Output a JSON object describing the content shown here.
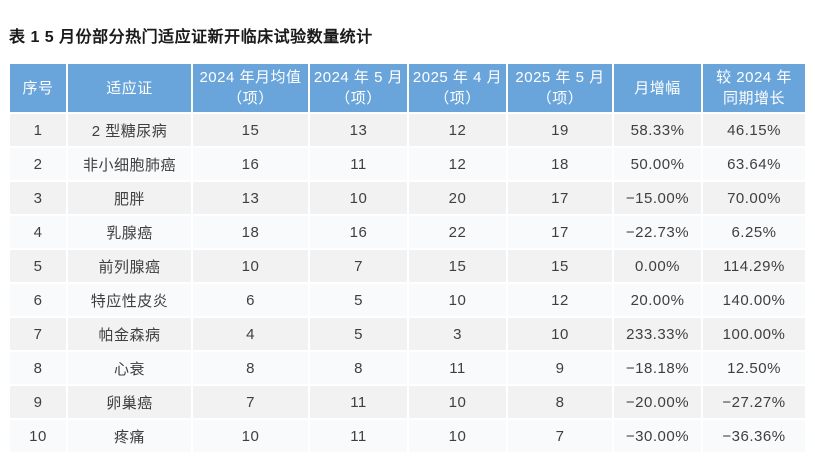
{
  "title": "表 1  5 月份部分热门适应证新开临床试验数量统计",
  "table": {
    "headers": [
      "序号",
      "适应证",
      "2024 年月均值\n（项）",
      "2024 年 5 月\n（项）",
      "2025 年 4 月\n（项）",
      "2025 年 5 月\n（项）",
      "月增幅",
      "较 2024 年\n同期增长"
    ],
    "rows": [
      [
        "1",
        "2 型糖尿病",
        "15",
        "13",
        "12",
        "19",
        "58.33%",
        "46.15%"
      ],
      [
        "2",
        "非小细胞肺癌",
        "16",
        "11",
        "12",
        "18",
        "50.00%",
        "63.64%"
      ],
      [
        "3",
        "肥胖",
        "13",
        "10",
        "20",
        "17",
        "−15.00%",
        "70.00%"
      ],
      [
        "4",
        "乳腺癌",
        "18",
        "16",
        "22",
        "17",
        "−22.73%",
        "6.25%"
      ],
      [
        "5",
        "前列腺癌",
        "10",
        "7",
        "15",
        "15",
        "0.00%",
        "114.29%"
      ],
      [
        "6",
        "特应性皮炎",
        "6",
        "5",
        "10",
        "12",
        "20.00%",
        "140.00%"
      ],
      [
        "7",
        "帕金森病",
        "4",
        "5",
        "3",
        "10",
        "233.33%",
        "100.00%"
      ],
      [
        "8",
        "心衰",
        "8",
        "8",
        "11",
        "9",
        "−18.18%",
        "12.50%"
      ],
      [
        "9",
        "卵巢癌",
        "7",
        "11",
        "10",
        "8",
        "−20.00%",
        "−27.27%"
      ],
      [
        "10",
        "疼痛",
        "10",
        "11",
        "10",
        "7",
        "−30.00%",
        "−36.36%"
      ]
    ]
  },
  "colors": {
    "header_bg": "#69a5db",
    "header_text": "#ffffff",
    "row_odd_bg": "#f2f2f2",
    "row_even_bg": "#f8fafc",
    "body_text": "#3f3f3f",
    "title_text": "#1a1a1a"
  }
}
